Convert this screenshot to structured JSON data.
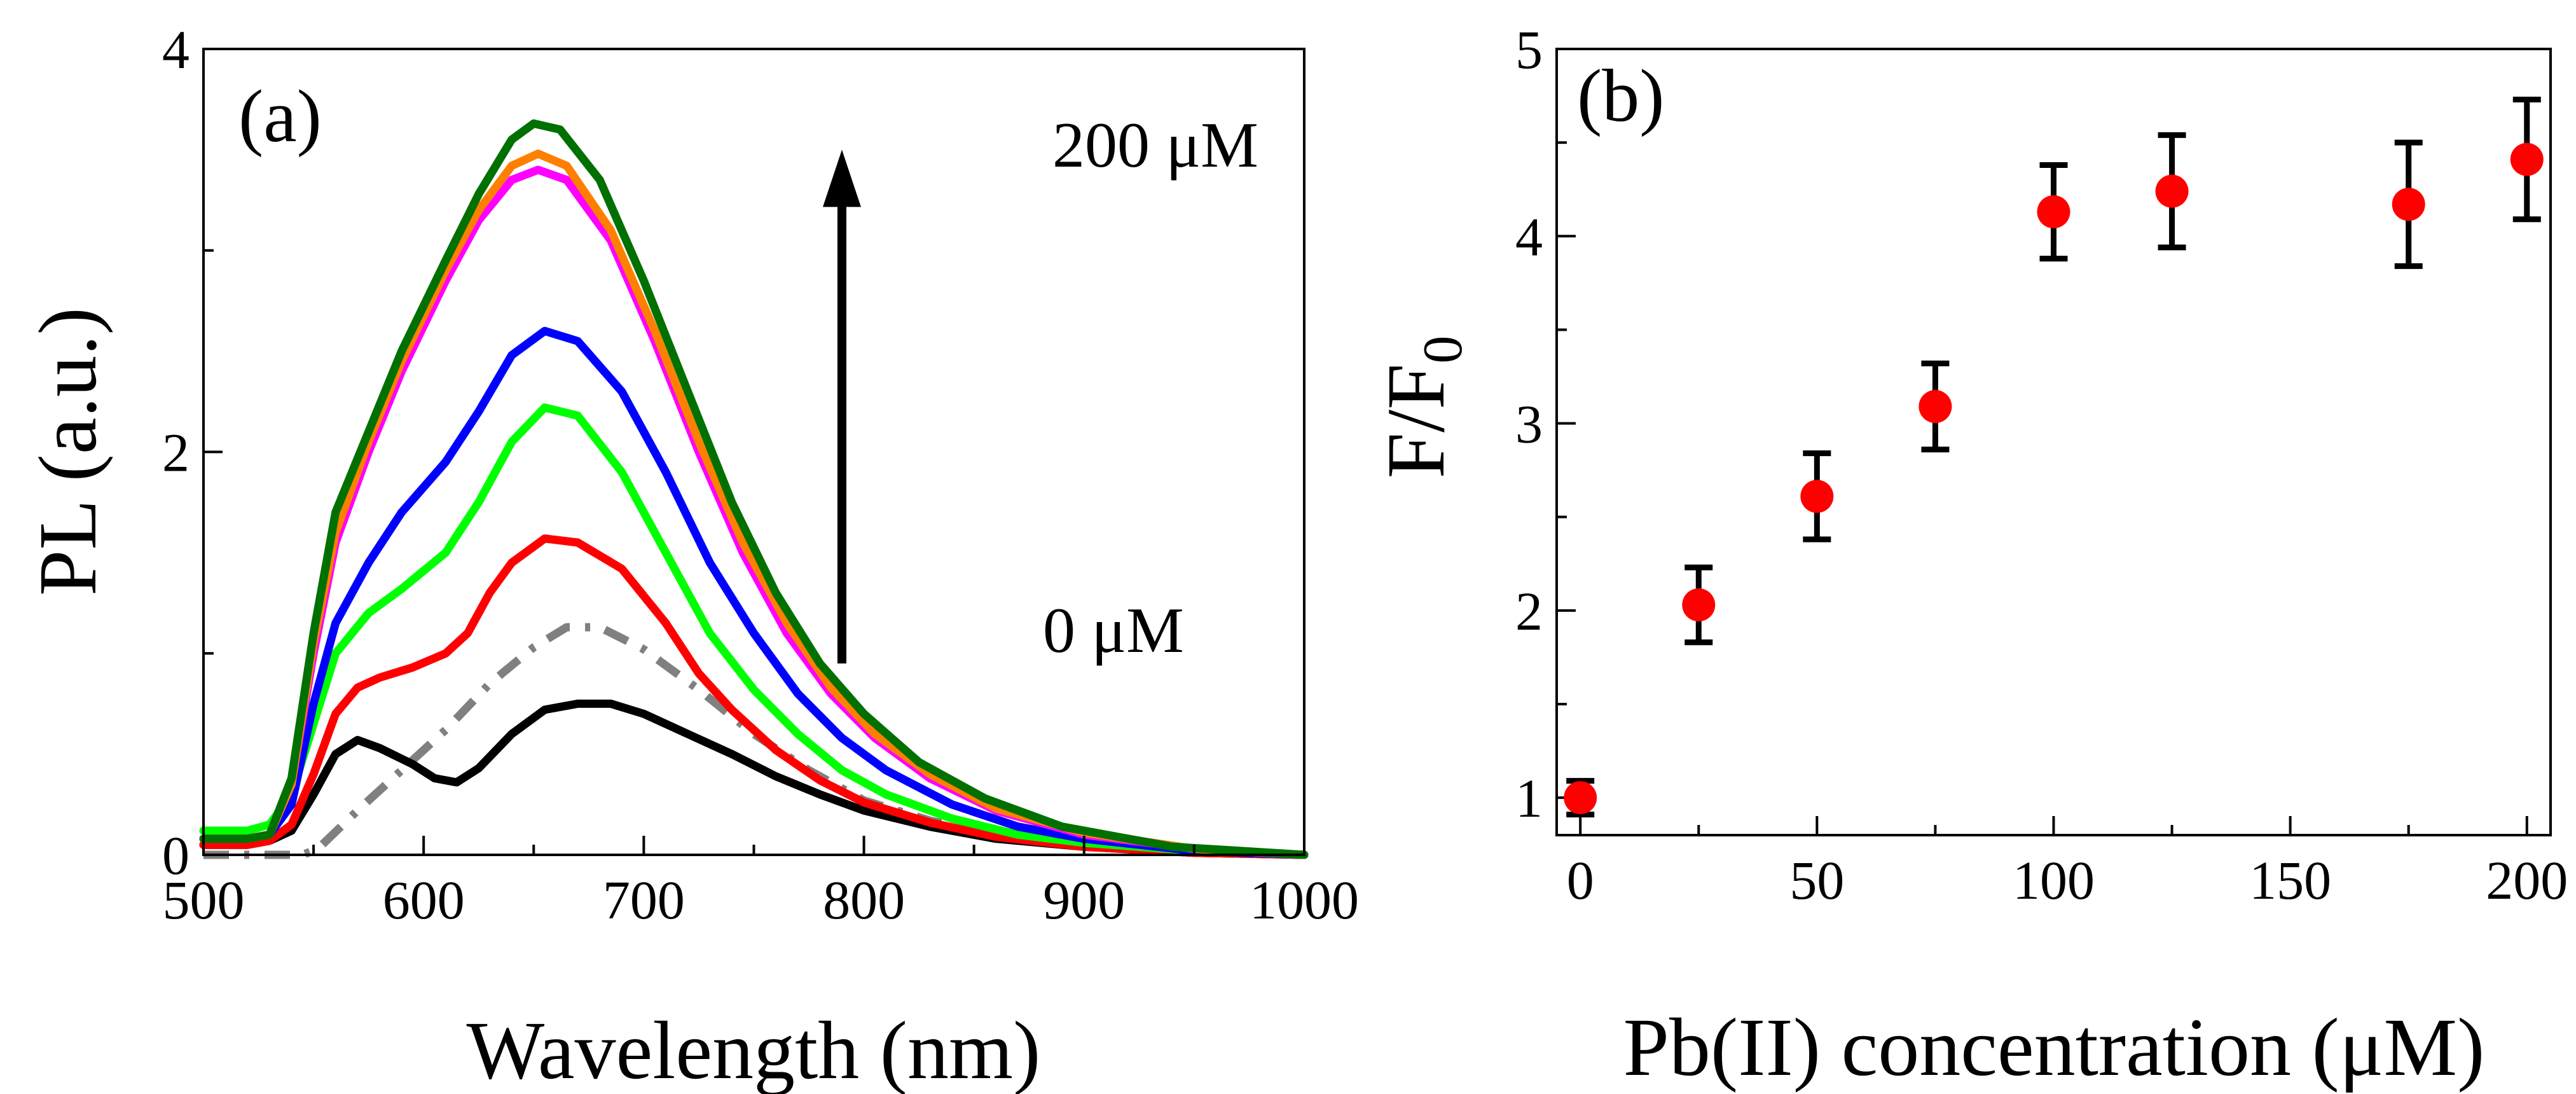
{
  "figure": {
    "description_free": true
  },
  "chart_data": [
    {
      "panel_label": "(a)",
      "type": "line",
      "xlabel": "Wavelength (nm)",
      "ylabel": "PL (a.u.)",
      "xlim": [
        500,
        1000
      ],
      "ylim": [
        0,
        4
      ],
      "xticks": [
        500,
        600,
        700,
        800,
        900,
        1000
      ],
      "yticks": [
        0,
        2,
        4
      ],
      "annotations": {
        "top": "200 μM",
        "bottom": "0 μM"
      },
      "arrow": {
        "direction": "up",
        "x": 790,
        "y_from": 0.95,
        "y_to": 3.5
      },
      "series": [
        {
          "name": "dashed",
          "color": "#808080",
          "dash": "dashdot",
          "points": [
            [
              500,
              0
            ],
            [
              545,
              0
            ],
            [
              552,
              0.03
            ],
            [
              570,
              0.22
            ],
            [
              590,
              0.42
            ],
            [
              610,
              0.62
            ],
            [
              630,
              0.85
            ],
            [
              650,
              1.03
            ],
            [
              665,
              1.13
            ],
            [
              680,
              1.13
            ],
            [
              700,
              1.02
            ],
            [
              725,
              0.82
            ],
            [
              750,
              0.6
            ],
            [
              775,
              0.42
            ],
            [
              800,
              0.27
            ],
            [
              830,
              0.17
            ],
            [
              860,
              0.1
            ],
            [
              900,
              0.05
            ],
            [
              950,
              0.01
            ],
            [
              1000,
              0
            ]
          ]
        },
        {
          "name": "black",
          "color": "#000000",
          "dash": "solid",
          "points": [
            [
              500,
              0.05
            ],
            [
              520,
              0.05
            ],
            [
              530,
              0.07
            ],
            [
              540,
              0.12
            ],
            [
              550,
              0.3
            ],
            [
              560,
              0.5
            ],
            [
              570,
              0.57
            ],
            [
              580,
              0.53
            ],
            [
              595,
              0.45
            ],
            [
              605,
              0.38
            ],
            [
              615,
              0.36
            ],
            [
              625,
              0.43
            ],
            [
              640,
              0.6
            ],
            [
              655,
              0.72
            ],
            [
              670,
              0.75
            ],
            [
              685,
              0.75
            ],
            [
              700,
              0.7
            ],
            [
              720,
              0.6
            ],
            [
              740,
              0.5
            ],
            [
              760,
              0.39
            ],
            [
              780,
              0.3
            ],
            [
              800,
              0.22
            ],
            [
              830,
              0.14
            ],
            [
              860,
              0.08
            ],
            [
              900,
              0.04
            ],
            [
              950,
              0.01
            ],
            [
              1000,
              0
            ]
          ]
        },
        {
          "name": "red",
          "color": "#ff0000",
          "dash": "solid",
          "points": [
            [
              500,
              0.05
            ],
            [
              520,
              0.05
            ],
            [
              530,
              0.07
            ],
            [
              540,
              0.15
            ],
            [
              550,
              0.4
            ],
            [
              560,
              0.7
            ],
            [
              570,
              0.83
            ],
            [
              580,
              0.88
            ],
            [
              595,
              0.93
            ],
            [
              610,
              1.0
            ],
            [
              620,
              1.1
            ],
            [
              630,
              1.3
            ],
            [
              640,
              1.45
            ],
            [
              655,
              1.57
            ],
            [
              670,
              1.55
            ],
            [
              690,
              1.42
            ],
            [
              710,
              1.15
            ],
            [
              725,
              0.9
            ],
            [
              740,
              0.72
            ],
            [
              760,
              0.52
            ],
            [
              780,
              0.37
            ],
            [
              800,
              0.26
            ],
            [
              830,
              0.16
            ],
            [
              860,
              0.09
            ],
            [
              900,
              0.04
            ],
            [
              950,
              0.01
            ],
            [
              1000,
              0
            ]
          ]
        },
        {
          "name": "green",
          "color": "#00ff00",
          "dash": "solid",
          "points": [
            [
              500,
              0.12
            ],
            [
              520,
              0.12
            ],
            [
              530,
              0.15
            ],
            [
              540,
              0.3
            ],
            [
              550,
              0.65
            ],
            [
              560,
              1.0
            ],
            [
              575,
              1.2
            ],
            [
              590,
              1.32
            ],
            [
              610,
              1.5
            ],
            [
              625,
              1.75
            ],
            [
              640,
              2.05
            ],
            [
              655,
              2.22
            ],
            [
              670,
              2.18
            ],
            [
              690,
              1.9
            ],
            [
              710,
              1.5
            ],
            [
              730,
              1.1
            ],
            [
              750,
              0.82
            ],
            [
              770,
              0.6
            ],
            [
              790,
              0.42
            ],
            [
              810,
              0.3
            ],
            [
              840,
              0.18
            ],
            [
              870,
              0.1
            ],
            [
              900,
              0.06
            ],
            [
              950,
              0.02
            ],
            [
              1000,
              0
            ]
          ]
        },
        {
          "name": "blue",
          "color": "#0000ff",
          "dash": "solid",
          "points": [
            [
              500,
              0.08
            ],
            [
              520,
              0.08
            ],
            [
              530,
              0.1
            ],
            [
              540,
              0.25
            ],
            [
              550,
              0.75
            ],
            [
              560,
              1.15
            ],
            [
              575,
              1.45
            ],
            [
              590,
              1.7
            ],
            [
              610,
              1.95
            ],
            [
              625,
              2.2
            ],
            [
              640,
              2.48
            ],
            [
              655,
              2.6
            ],
            [
              670,
              2.55
            ],
            [
              690,
              2.3
            ],
            [
              710,
              1.9
            ],
            [
              730,
              1.45
            ],
            [
              750,
              1.1
            ],
            [
              770,
              0.8
            ],
            [
              790,
              0.58
            ],
            [
              810,
              0.42
            ],
            [
              840,
              0.25
            ],
            [
              870,
              0.14
            ],
            [
              900,
              0.08
            ],
            [
              950,
              0.02
            ],
            [
              1000,
              0
            ]
          ]
        },
        {
          "name": "magenta",
          "color": "#ff00ff",
          "dash": "solid",
          "points": [
            [
              500,
              0.08
            ],
            [
              520,
              0.08
            ],
            [
              530,
              0.1
            ],
            [
              540,
              0.35
            ],
            [
              550,
              1.0
            ],
            [
              560,
              1.55
            ],
            [
              575,
              2.0
            ],
            [
              590,
              2.4
            ],
            [
              610,
              2.85
            ],
            [
              625,
              3.15
            ],
            [
              640,
              3.35
            ],
            [
              652,
              3.4
            ],
            [
              665,
              3.35
            ],
            [
              685,
              3.05
            ],
            [
              705,
              2.55
            ],
            [
              725,
              2.0
            ],
            [
              745,
              1.5
            ],
            [
              765,
              1.1
            ],
            [
              785,
              0.8
            ],
            [
              805,
              0.58
            ],
            [
              830,
              0.38
            ],
            [
              860,
              0.22
            ],
            [
              900,
              0.1
            ],
            [
              950,
              0.03
            ],
            [
              1000,
              0
            ]
          ]
        },
        {
          "name": "orange",
          "color": "#ff8000",
          "dash": "solid",
          "points": [
            [
              500,
              0.08
            ],
            [
              520,
              0.08
            ],
            [
              530,
              0.1
            ],
            [
              540,
              0.35
            ],
            [
              550,
              1.05
            ],
            [
              560,
              1.6
            ],
            [
              575,
              2.05
            ],
            [
              590,
              2.45
            ],
            [
              610,
              2.9
            ],
            [
              625,
              3.2
            ],
            [
              640,
              3.42
            ],
            [
              652,
              3.48
            ],
            [
              665,
              3.42
            ],
            [
              685,
              3.1
            ],
            [
              705,
              2.6
            ],
            [
              725,
              2.05
            ],
            [
              745,
              1.55
            ],
            [
              765,
              1.15
            ],
            [
              785,
              0.83
            ],
            [
              805,
              0.6
            ],
            [
              830,
              0.4
            ],
            [
              860,
              0.23
            ],
            [
              900,
              0.11
            ],
            [
              950,
              0.03
            ],
            [
              1000,
              0
            ]
          ]
        },
        {
          "name": "dark-green",
          "color": "#007000",
          "dash": "solid",
          "points": [
            [
              500,
              0.08
            ],
            [
              520,
              0.08
            ],
            [
              530,
              0.1
            ],
            [
              540,
              0.38
            ],
            [
              550,
              1.1
            ],
            [
              560,
              1.7
            ],
            [
              575,
              2.1
            ],
            [
              590,
              2.5
            ],
            [
              610,
              2.95
            ],
            [
              625,
              3.28
            ],
            [
              640,
              3.55
            ],
            [
              650,
              3.63
            ],
            [
              662,
              3.6
            ],
            [
              680,
              3.35
            ],
            [
              700,
              2.85
            ],
            [
              720,
              2.3
            ],
            [
              740,
              1.75
            ],
            [
              760,
              1.3
            ],
            [
              780,
              0.95
            ],
            [
              800,
              0.7
            ],
            [
              825,
              0.46
            ],
            [
              855,
              0.28
            ],
            [
              890,
              0.14
            ],
            [
              940,
              0.04
            ],
            [
              1000,
              0
            ]
          ]
        }
      ]
    },
    {
      "panel_label": "(b)",
      "type": "scatter",
      "xlabel": "Pb(II) concentration (μM)",
      "ylabel": {
        "main": "F/F",
        "sub": "0"
      },
      "xlim": [
        -5,
        205
      ],
      "ylim": [
        0.8,
        5
      ],
      "xticks": [
        0,
        50,
        100,
        150,
        200
      ],
      "yticks": [
        1,
        2,
        3,
        4,
        5
      ],
      "marker_color": "#ff0000",
      "errorbar_color": "#000000",
      "points": [
        {
          "x": 0,
          "y": 1.0,
          "err": 0.09
        },
        {
          "x": 25,
          "y": 2.03,
          "err": 0.2
        },
        {
          "x": 50,
          "y": 2.61,
          "err": 0.23
        },
        {
          "x": 75,
          "y": 3.09,
          "err": 0.23
        },
        {
          "x": 100,
          "y": 4.13,
          "err": 0.25
        },
        {
          "x": 125,
          "y": 4.24,
          "err": 0.3
        },
        {
          "x": 175,
          "y": 4.17,
          "err": 0.33
        },
        {
          "x": 200,
          "y": 4.41,
          "err": 0.32
        }
      ]
    }
  ]
}
